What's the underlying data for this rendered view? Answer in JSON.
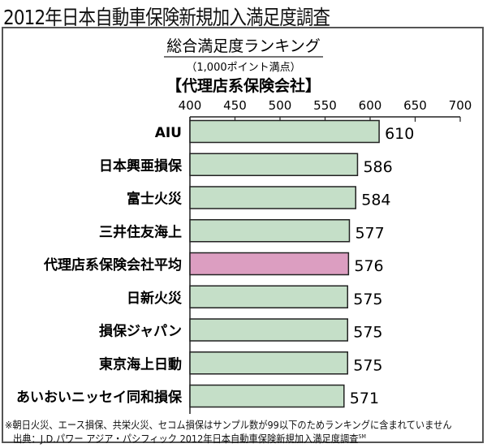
{
  "title": "2012年日本自動車保険新規加入満足度調査",
  "chart_data": {
    "type": "bar",
    "orientation": "horizontal",
    "title": "総合満足度ランキング",
    "subtitle": "（1,000ポイント満点）",
    "group_label": "【代理店系保険会社】",
    "categories": [
      "AIU",
      "日本興亜損保",
      "富士火災",
      "三井住友海上",
      "代理店系保険会社平均",
      "日新火災",
      "損保ジャパン",
      "東京海上日動",
      "あいおいニッセイ同和損保"
    ],
    "values": [
      610,
      586,
      584,
      577,
      576,
      575,
      575,
      575,
      571
    ],
    "highlight_index": 4,
    "xlim": [
      400,
      700
    ],
    "xticks": [
      400,
      450,
      500,
      550,
      600,
      650,
      700
    ],
    "grid": false,
    "colors": {
      "bar": "#c5dfc8",
      "highlight": "#dc9ec1",
      "border": "#222222"
    }
  },
  "notes": {
    "footnote": "※朝日火災、エース損保、共栄火災、セコム損保はサンプル数が99以下のためランキングに含まれていません",
    "source": "出典：J.D.パワー アジア・パシフィック 2012年日本自動車保険新規加入満足度調査",
    "source_mark": "SM"
  }
}
